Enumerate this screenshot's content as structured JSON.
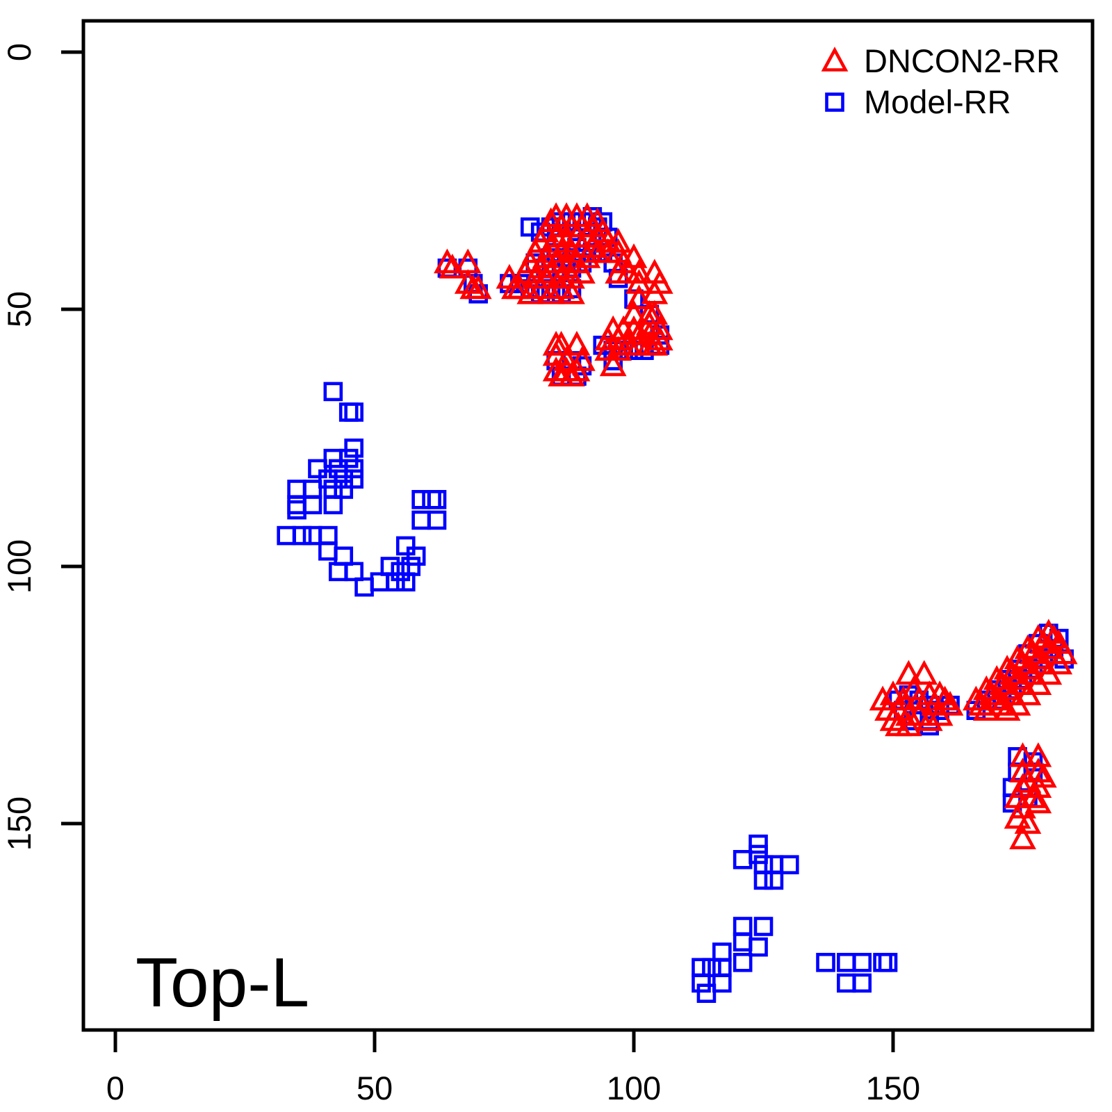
{
  "figure": {
    "background": "#FFFFFF"
  },
  "chart_data": {
    "type": "scatter",
    "title": "",
    "xlabel": "",
    "ylabel": "",
    "annotation": "Top-L",
    "grid": false,
    "legend_position": "top-right",
    "x_axis": {
      "ticks": [
        0,
        50,
        100,
        150
      ],
      "range": [
        -6,
        188
      ]
    },
    "y_axis": {
      "ticks": [
        0,
        50,
        100,
        150
      ],
      "range": [
        -6,
        190
      ],
      "inverted": true
    },
    "axis_color": "#000000",
    "series": [
      {
        "name": "DNCON2-RR",
        "marker": "triangle-open",
        "color": "#FF0000",
        "points": [
          [
            64,
            41
          ],
          [
            65,
            42
          ],
          [
            68,
            41
          ],
          [
            68,
            45
          ],
          [
            69,
            46
          ],
          [
            70,
            46
          ],
          [
            76,
            44
          ],
          [
            77,
            46
          ],
          [
            78,
            46
          ],
          [
            80,
            47
          ],
          [
            82,
            46
          ],
          [
            84,
            47
          ],
          [
            86,
            46
          ],
          [
            88,
            47
          ],
          [
            79,
            43
          ],
          [
            80,
            41
          ],
          [
            81,
            39
          ],
          [
            81,
            44
          ],
          [
            82,
            37
          ],
          [
            82,
            42
          ],
          [
            83,
            35
          ],
          [
            83,
            40
          ],
          [
            83,
            44
          ],
          [
            84,
            33
          ],
          [
            84,
            38
          ],
          [
            84,
            43
          ],
          [
            85,
            32
          ],
          [
            85,
            36
          ],
          [
            85,
            41
          ],
          [
            86,
            34
          ],
          [
            86,
            39
          ],
          [
            86,
            44
          ],
          [
            87,
            32
          ],
          [
            87,
            37
          ],
          [
            87,
            42
          ],
          [
            88,
            34
          ],
          [
            88,
            39
          ],
          [
            88,
            44
          ],
          [
            89,
            32
          ],
          [
            89,
            36
          ],
          [
            89,
            41
          ],
          [
            90,
            34
          ],
          [
            90,
            38
          ],
          [
            90,
            43
          ],
          [
            91,
            32
          ],
          [
            91,
            36
          ],
          [
            91,
            40
          ],
          [
            92,
            34
          ],
          [
            92,
            38
          ],
          [
            93,
            33
          ],
          [
            93,
            36
          ],
          [
            93,
            39
          ],
          [
            94,
            35
          ],
          [
            95,
            37
          ],
          [
            95,
            39
          ],
          [
            97,
            37
          ],
          [
            97,
            39
          ],
          [
            98,
            41
          ],
          [
            100,
            40
          ],
          [
            97,
            43
          ],
          [
            99,
            43
          ],
          [
            101,
            43
          ],
          [
            104,
            43
          ],
          [
            101,
            45
          ],
          [
            105,
            45
          ],
          [
            104,
            47
          ],
          [
            101,
            48
          ],
          [
            100,
            51
          ],
          [
            103,
            51
          ],
          [
            104,
            51
          ],
          [
            103,
            53
          ],
          [
            105,
            54
          ],
          [
            105,
            56
          ],
          [
            96,
            54
          ],
          [
            98,
            54
          ],
          [
            100,
            54
          ],
          [
            101,
            55
          ],
          [
            103,
            55
          ],
          [
            95,
            56
          ],
          [
            97,
            56
          ],
          [
            99,
            57
          ],
          [
            101,
            57
          ],
          [
            103,
            57
          ],
          [
            104,
            57
          ],
          [
            95,
            58
          ],
          [
            97,
            58
          ],
          [
            96,
            61
          ],
          [
            85,
            57
          ],
          [
            86,
            57
          ],
          [
            89,
            57
          ],
          [
            85,
            59
          ],
          [
            87,
            60
          ],
          [
            90,
            60
          ],
          [
            85,
            62
          ],
          [
            87,
            62
          ],
          [
            89,
            62
          ],
          [
            86,
            63
          ],
          [
            88,
            63
          ],
          [
            148,
            126
          ],
          [
            150,
            125
          ],
          [
            153,
            121
          ],
          [
            152,
            126
          ],
          [
            154,
            124
          ],
          [
            155,
            126
          ],
          [
            156,
            121
          ],
          [
            157,
            125
          ],
          [
            158,
            127
          ],
          [
            159,
            125
          ],
          [
            160,
            126
          ],
          [
            161,
            127
          ],
          [
            149,
            128
          ],
          [
            151,
            128
          ],
          [
            153,
            129
          ],
          [
            155,
            129
          ],
          [
            157,
            130
          ],
          [
            159,
            129
          ],
          [
            151,
            131
          ],
          [
            153,
            131
          ],
          [
            150,
            130
          ],
          [
            180,
            113
          ],
          [
            181,
            114
          ],
          [
            178,
            114
          ],
          [
            179,
            115
          ],
          [
            182,
            115
          ],
          [
            176,
            116
          ],
          [
            177,
            117
          ],
          [
            180,
            116
          ],
          [
            181,
            117
          ],
          [
            183,
            117
          ],
          [
            174,
            118
          ],
          [
            175,
            119
          ],
          [
            178,
            118
          ],
          [
            179,
            119
          ],
          [
            182,
            119
          ],
          [
            172,
            120
          ],
          [
            173,
            121
          ],
          [
            176,
            120
          ],
          [
            177,
            121
          ],
          [
            180,
            121
          ],
          [
            170,
            122
          ],
          [
            171,
            123
          ],
          [
            174,
            122
          ],
          [
            175,
            123
          ],
          [
            178,
            123
          ],
          [
            168,
            124
          ],
          [
            169,
            125
          ],
          [
            172,
            124
          ],
          [
            173,
            125
          ],
          [
            176,
            125
          ],
          [
            166,
            126
          ],
          [
            167,
            127
          ],
          [
            170,
            126
          ],
          [
            171,
            127
          ],
          [
            174,
            127
          ],
          [
            168,
            128
          ],
          [
            172,
            128
          ],
          [
            175,
            137
          ],
          [
            178,
            137
          ],
          [
            175,
            140
          ],
          [
            178,
            140
          ],
          [
            179,
            141
          ],
          [
            176,
            142
          ],
          [
            175,
            143
          ],
          [
            178,
            143
          ],
          [
            174,
            145
          ],
          [
            177,
            145
          ],
          [
            175,
            147
          ],
          [
            178,
            146
          ],
          [
            174,
            149
          ],
          [
            176,
            150
          ],
          [
            175,
            153
          ]
        ]
      },
      {
        "name": "Model-RR",
        "marker": "square-open",
        "color": "#0000FF",
        "points": [
          [
            64,
            42
          ],
          [
            68,
            42
          ],
          [
            69,
            45
          ],
          [
            70,
            47
          ],
          [
            76,
            45
          ],
          [
            78,
            45
          ],
          [
            80,
            46
          ],
          [
            82,
            47
          ],
          [
            84,
            46
          ],
          [
            86,
            47
          ],
          [
            88,
            46
          ],
          [
            80,
            34
          ],
          [
            82,
            35
          ],
          [
            84,
            34
          ],
          [
            86,
            33
          ],
          [
            88,
            33
          ],
          [
            90,
            33
          ],
          [
            92,
            32
          ],
          [
            94,
            33
          ],
          [
            81,
            41
          ],
          [
            83,
            42
          ],
          [
            85,
            39
          ],
          [
            87,
            40
          ],
          [
            89,
            38
          ],
          [
            91,
            37
          ],
          [
            90,
            41
          ],
          [
            92,
            39
          ],
          [
            88,
            42
          ],
          [
            86,
            41
          ],
          [
            84,
            40
          ],
          [
            93,
            34
          ],
          [
            95,
            36
          ],
          [
            94,
            39
          ],
          [
            96,
            41
          ],
          [
            97,
            44
          ],
          [
            100,
            48
          ],
          [
            103,
            51
          ],
          [
            103,
            54
          ],
          [
            105,
            55
          ],
          [
            105,
            57
          ],
          [
            94,
            57
          ],
          [
            96,
            58
          ],
          [
            98,
            58
          ],
          [
            100,
            58
          ],
          [
            102,
            58
          ],
          [
            96,
            60
          ],
          [
            85,
            60
          ],
          [
            88,
            60
          ],
          [
            90,
            61
          ],
          [
            86,
            63
          ],
          [
            89,
            63
          ],
          [
            42,
            66
          ],
          [
            45,
            70
          ],
          [
            46,
            70
          ],
          [
            46,
            77
          ],
          [
            45,
            79
          ],
          [
            42,
            79
          ],
          [
            46,
            81
          ],
          [
            43,
            81
          ],
          [
            39,
            81
          ],
          [
            41,
            83
          ],
          [
            44,
            83
          ],
          [
            46,
            83
          ],
          [
            35,
            85
          ],
          [
            38,
            85
          ],
          [
            42,
            85
          ],
          [
            44,
            85
          ],
          [
            35,
            88
          ],
          [
            38,
            88
          ],
          [
            42,
            88
          ],
          [
            35,
            89
          ],
          [
            59,
            87
          ],
          [
            61,
            87
          ],
          [
            62,
            87
          ],
          [
            59,
            91
          ],
          [
            62,
            91
          ],
          [
            33,
            94
          ],
          [
            36,
            94
          ],
          [
            38,
            94
          ],
          [
            41,
            94
          ],
          [
            41,
            97
          ],
          [
            44,
            98
          ],
          [
            43,
            101
          ],
          [
            46,
            101
          ],
          [
            48,
            104
          ],
          [
            56,
            96
          ],
          [
            58,
            98
          ],
          [
            57,
            100
          ],
          [
            55,
            101
          ],
          [
            53,
            100
          ],
          [
            51,
            103
          ],
          [
            54,
            103
          ],
          [
            56,
            103
          ],
          [
            153,
            125
          ],
          [
            155,
            126
          ],
          [
            157,
            127
          ],
          [
            159,
            128
          ],
          [
            152,
            128
          ],
          [
            154,
            130
          ],
          [
            157,
            130
          ],
          [
            161,
            127
          ],
          [
            157,
            131
          ],
          [
            151,
            126
          ],
          [
            180,
            113
          ],
          [
            182,
            114
          ],
          [
            178,
            115
          ],
          [
            181,
            116
          ],
          [
            176,
            117
          ],
          [
            179,
            118
          ],
          [
            183,
            118
          ],
          [
            174,
            120
          ],
          [
            177,
            120
          ],
          [
            172,
            122
          ],
          [
            175,
            122
          ],
          [
            170,
            124
          ],
          [
            173,
            124
          ],
          [
            168,
            126
          ],
          [
            171,
            126
          ],
          [
            166,
            128
          ],
          [
            174,
            137
          ],
          [
            177,
            138
          ],
          [
            174,
            140
          ],
          [
            177,
            140
          ],
          [
            173,
            143
          ],
          [
            176,
            143
          ],
          [
            173,
            146
          ],
          [
            176,
            145
          ],
          [
            124,
            154
          ],
          [
            124,
            156
          ],
          [
            121,
            157
          ],
          [
            125,
            158
          ],
          [
            127,
            158
          ],
          [
            130,
            158
          ],
          [
            125,
            161
          ],
          [
            127,
            161
          ],
          [
            121,
            170
          ],
          [
            125,
            170
          ],
          [
            121,
            173
          ],
          [
            124,
            174
          ],
          [
            117,
            175
          ],
          [
            121,
            177
          ],
          [
            117,
            178
          ],
          [
            113,
            178
          ],
          [
            115,
            178
          ],
          [
            117,
            181
          ],
          [
            113,
            181
          ],
          [
            114,
            183
          ],
          [
            137,
            177
          ],
          [
            141,
            177
          ],
          [
            144,
            177
          ],
          [
            148,
            177
          ],
          [
            149,
            177
          ],
          [
            141,
            181
          ],
          [
            144,
            181
          ]
        ]
      }
    ]
  }
}
